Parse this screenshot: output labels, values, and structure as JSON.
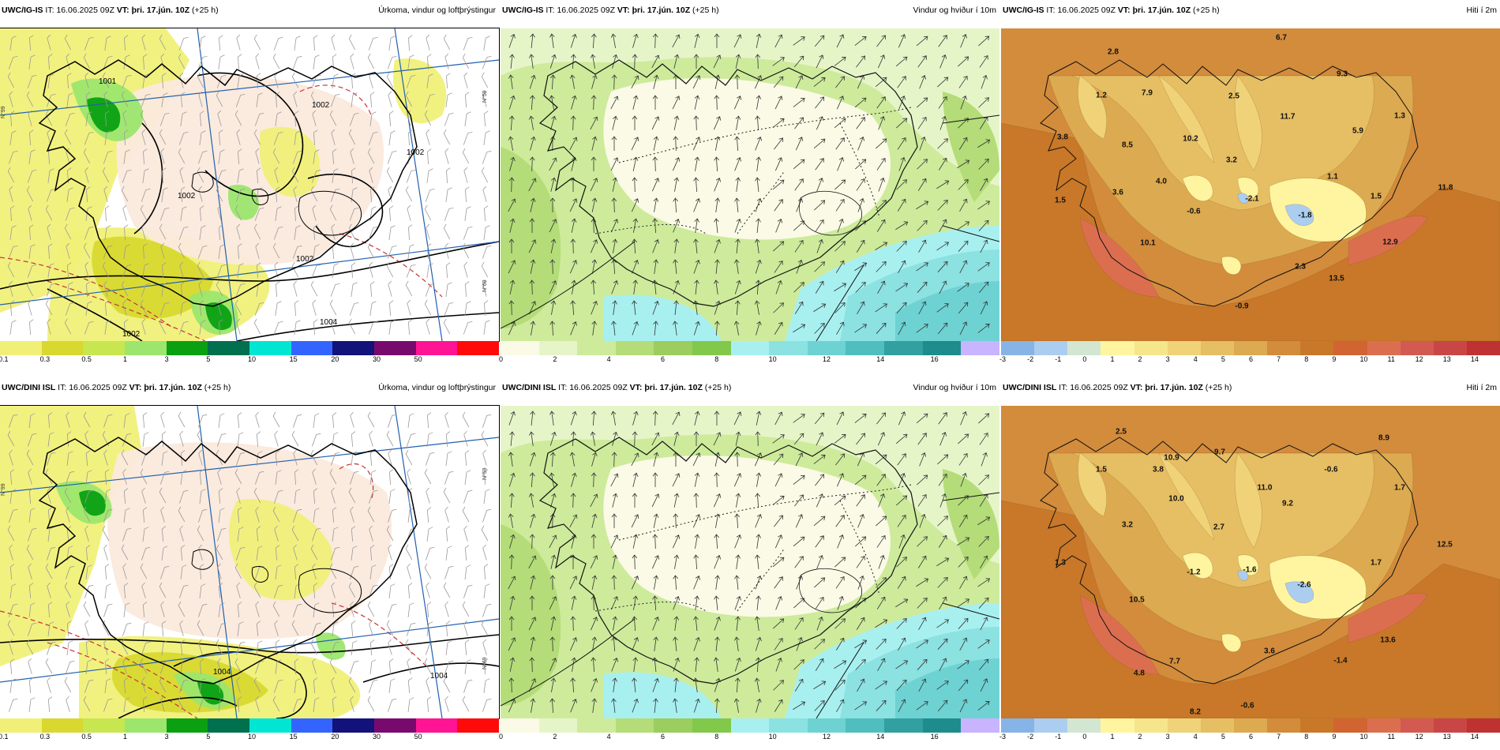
{
  "rows": [
    {
      "panels": [
        {
          "model": "UWC/IG-IS",
          "it_label": "IT:",
          "it_time": "16.06.2025 09Z",
          "vt_label": "VT:",
          "vt_time": "þri. 17.jún. 10Z",
          "lead": "(+25 h)",
          "title": "Úrkoma, vindur og loftþrýstingur",
          "isobars": [
            "1001",
            "1002",
            "1002",
            "1002",
            "1002",
            "1002",
            "1004"
          ],
          "colorbar": {
            "colors": [
              "#f0f078",
              "#d8d830",
              "#c8e650",
              "#9ce66e",
              "#0aa012",
              "#00704e",
              "#00e6d2",
              "#3464ff",
              "#12127a",
              "#780a6e",
              "#ff1493",
              "#ff0a0a"
            ],
            "labels": [
              "0.1",
              "0.3",
              "0.5",
              "1",
              "3",
              "5",
              "10",
              "15",
              "20",
              "30",
              "50"
            ]
          },
          "grid_labels": [
            "N°99",
            "N°59",
            "N°69"
          ]
        },
        {
          "model": "UWC/IG-IS",
          "it_label": "IT:",
          "it_time": "16.06.2025 09Z",
          "vt_label": "VT:",
          "vt_time": "þri. 17.jún. 10Z",
          "lead": "(+25 h)",
          "title": "Vindur og hviður í 10m",
          "colorbar": {
            "colors": [
              "#fafae6",
              "#e6f5c8",
              "#cdeb9b",
              "#b4dc78",
              "#9bcd5f",
              "#82c84b",
              "#a8f0f0",
              "#8ce1e1",
              "#6ed2d2",
              "#50bebe",
              "#32a0a0",
              "#1e8c8c",
              "#c8b4ff"
            ],
            "labels": [
              "0",
              "2",
              "4",
              "6",
              "8",
              "10",
              "12",
              "14",
              "16"
            ]
          }
        },
        {
          "model": "UWC/IG-IS",
          "it_label": "IT:",
          "it_time": "16.06.2025 09Z",
          "vt_label": "VT:",
          "vt_time": "þri. 17.jún. 10Z",
          "lead": "(+25 h)",
          "title": "Hiti í 2m",
          "temps": [
            "6.7",
            "2.8",
            "9.3",
            "1.2",
            "7.9",
            "2.5",
            "11.7",
            "1.3",
            "3.8",
            "8.5",
            "10.2",
            "5.9",
            "3.2",
            "1.1",
            "3.6",
            "4.0",
            "11.8",
            "1.5",
            "-0.6",
            "-2.1",
            "1.5",
            "-1.8",
            "10.1",
            "12.9",
            "2.3",
            "13.5",
            "-0.9"
          ],
          "colorbar": {
            "colors": [
              "#87b4e6",
              "#aacdf0",
              "#d2e6d2",
              "#fff5a0",
              "#f5e68c",
              "#f0d278",
              "#e6be64",
              "#dcaa50",
              "#d28c3c",
              "#c87828",
              "#d26432",
              "#dc6e50",
              "#d25a50",
              "#c84646",
              "#be3232"
            ],
            "labels": [
              "-3",
              "-2",
              "-1",
              "0",
              "1",
              "2",
              "3",
              "4",
              "5",
              "6",
              "7",
              "8",
              "9",
              "10",
              "11",
              "12",
              "13",
              "14"
            ]
          }
        }
      ]
    },
    {
      "panels": [
        {
          "model": "UWC/DINI ISL",
          "it_label": "IT:",
          "it_time": "16.06.2025 09Z",
          "vt_label": "VT:",
          "vt_time": "þri. 17.jún. 10Z",
          "lead": "(+25 h)",
          "title": "Úrkoma, vindur og loftþrýstingur",
          "isobars": [
            "1004",
            "1004"
          ],
          "colorbar": {
            "colors": [
              "#f0f078",
              "#d8d830",
              "#c8e650",
              "#9ce66e",
              "#0aa012",
              "#00704e",
              "#00e6d2",
              "#3464ff",
              "#12127a",
              "#780a6e",
              "#ff1493",
              "#ff0a0a"
            ],
            "labels": [
              "0.1",
              "0.3",
              "0.5",
              "1",
              "3",
              "5",
              "10",
              "15",
              "20",
              "30",
              "50"
            ]
          },
          "grid_labels": [
            "N°99",
            "N°59",
            "N°69"
          ]
        },
        {
          "model": "UWC/DINI ISL",
          "it_label": "IT:",
          "it_time": "16.06.2025 09Z",
          "vt_label": "VT:",
          "vt_time": "þri. 17.jún. 10Z",
          "lead": "(+25 h)",
          "title": "Vindur og hviður í 10m",
          "colorbar": {
            "colors": [
              "#fafae6",
              "#e6f5c8",
              "#cdeb9b",
              "#b4dc78",
              "#9bcd5f",
              "#82c84b",
              "#a8f0f0",
              "#8ce1e1",
              "#6ed2d2",
              "#50bebe",
              "#32a0a0",
              "#1e8c8c",
              "#c8b4ff"
            ],
            "labels": [
              "0",
              "2",
              "4",
              "6",
              "8",
              "10",
              "12",
              "14",
              "16"
            ]
          }
        },
        {
          "model": "UWC/DINI ISL",
          "it_label": "IT:",
          "it_time": "16.06.2025 09Z",
          "vt_label": "VT:",
          "vt_time": "þri. 17.jún. 10Z",
          "lead": "(+25 h)",
          "title": "Hiti í 2m",
          "temps": [
            "2.5",
            "8.9",
            "10.9",
            "9.7",
            "1.5",
            "3.8",
            "-0.6",
            "11.0",
            "1.7",
            "10.0",
            "9.2",
            "3.2",
            "2.7",
            "12.5",
            "1.3",
            "-1.2",
            "-1.6",
            "1.7",
            "10.5",
            "-2.6",
            "13.6",
            "3.6",
            "7.7",
            "-1.4",
            "4.8",
            "-0.6",
            "8.2"
          ],
          "colorbar": {
            "colors": [
              "#87b4e6",
              "#aacdf0",
              "#d2e6d2",
              "#fff5a0",
              "#f5e68c",
              "#f0d278",
              "#e6be64",
              "#dcaa50",
              "#d28c3c",
              "#c87828",
              "#d26432",
              "#dc6e50",
              "#d25a50",
              "#c84646",
              "#be3232"
            ],
            "labels": [
              "-3",
              "-2",
              "-1",
              "0",
              "1",
              "2",
              "3",
              "4",
              "5",
              "6",
              "7",
              "8",
              "9",
              "10",
              "11",
              "12",
              "13",
              "14"
            ]
          }
        }
      ]
    }
  ]
}
